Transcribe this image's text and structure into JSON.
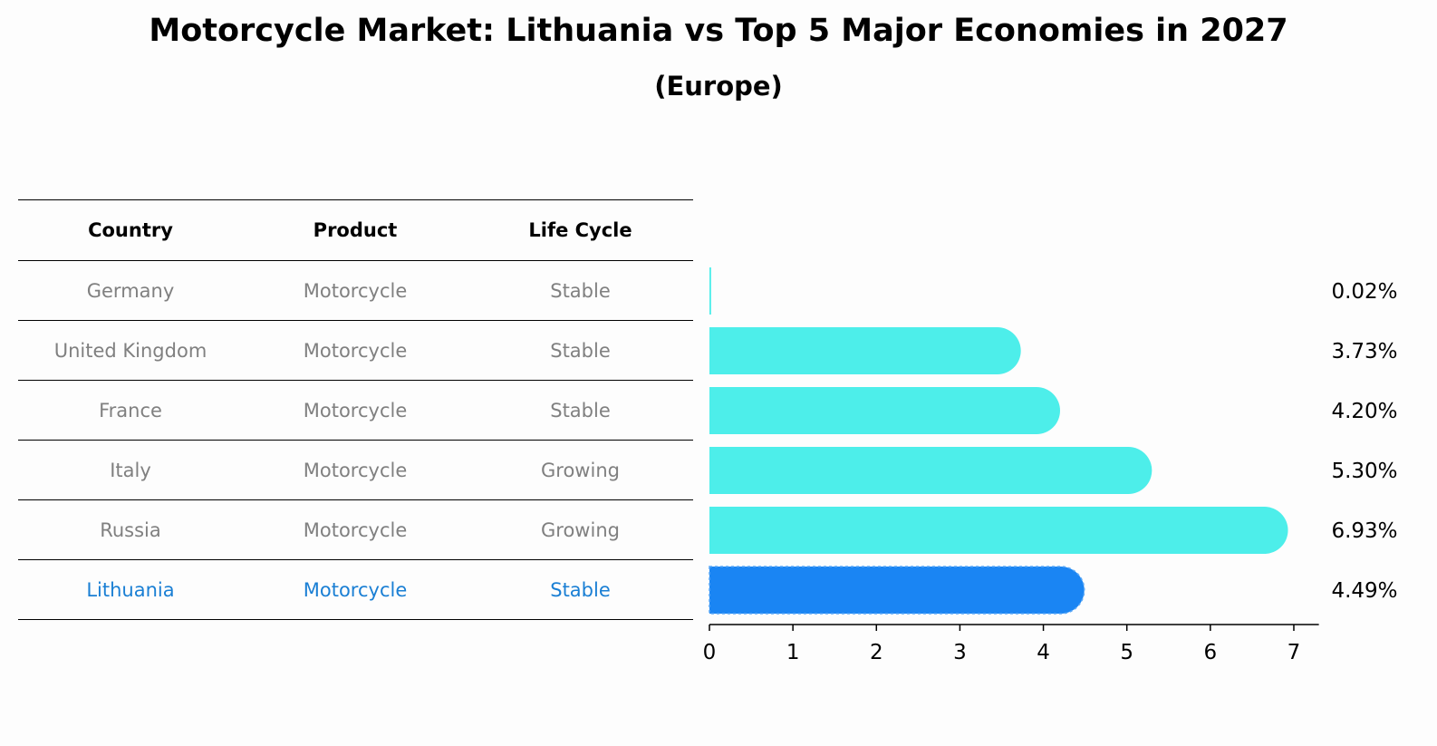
{
  "title": "Motorcycle Market: Lithuania vs Top 5 Major Economies in 2027",
  "subtitle": "(Europe)",
  "table": {
    "headers": [
      "Country",
      "Product",
      "Life Cycle"
    ],
    "rows": [
      {
        "country": "Germany",
        "product": "Motorcycle",
        "life_cycle": "Stable"
      },
      {
        "country": "United Kingdom",
        "product": "Motorcycle",
        "life_cycle": "Stable"
      },
      {
        "country": "France",
        "product": "Motorcycle",
        "life_cycle": "Stable"
      },
      {
        "country": "Italy",
        "product": "Motorcycle",
        "life_cycle": "Growing"
      },
      {
        "country": "Russia",
        "product": "Motorcycle",
        "life_cycle": "Growing"
      },
      {
        "country": "Lithuania",
        "product": "Motorcycle",
        "life_cycle": "Stable"
      }
    ],
    "highlight_color": "#1a7fd4",
    "text_color": "#808080"
  },
  "chart_data": {
    "type": "bar",
    "orientation": "horizontal",
    "categories": [
      "Germany",
      "United Kingdom",
      "France",
      "Italy",
      "Russia",
      "Lithuania"
    ],
    "values": [
      0.02,
      3.73,
      4.2,
      5.3,
      6.93,
      4.49
    ],
    "value_labels": [
      "0.02%",
      "3.73%",
      "4.20%",
      "5.30%",
      "6.93%",
      "4.49%"
    ],
    "xlim": [
      0,
      7.3
    ],
    "xticks": [
      0,
      1,
      2,
      3,
      4,
      5,
      6,
      7
    ],
    "bar_color": "#4deeea",
    "highlight_color": "#1a85f3",
    "highlight_category": "Lithuania",
    "grid": false
  }
}
